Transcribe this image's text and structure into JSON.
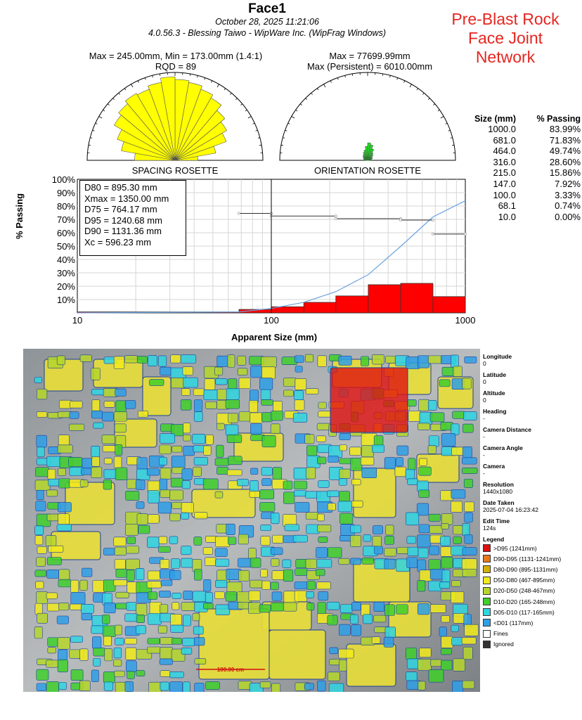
{
  "header": {
    "title": "Face1",
    "date": "October 28, 2025 11:21:06",
    "software": "4.0.56.3  -  Blessing Taiwo - WipWare Inc. (WipFrag Windows)"
  },
  "annotation": [
    "Pre-Blast Rock",
    "Face Joint",
    "Network"
  ],
  "spacing": {
    "stats_line1": "Max = 245.00mm, Min = 173.00mm (1.4:1)",
    "stats_line2": "RQD = 89",
    "label": "SPACING ROSETTE",
    "color": "#ffff00"
  },
  "orientation": {
    "stats_line1": "Max = 77699.99mm",
    "stats_line2": "Max (Persistent) = 6010.00mm",
    "label": "ORIENTATION ROSETTE",
    "color": "#22dd22"
  },
  "passing_table": {
    "headers": [
      "Size (mm)",
      "% Passing"
    ],
    "rows": [
      [
        "1000.0",
        "83.99%"
      ],
      [
        "681.0",
        "71.83%"
      ],
      [
        "464.0",
        "49.74%"
      ],
      [
        "316.0",
        "28.60%"
      ],
      [
        "215.0",
        "15.86%"
      ],
      [
        "147.0",
        "7.92%"
      ],
      [
        "100.0",
        "3.33%"
      ],
      [
        "68.1",
        "0.74%"
      ],
      [
        "10.0",
        "0.00%"
      ]
    ]
  },
  "stats_box": [
    "D80 = 895.30 mm",
    "Xmax = 1350.00 mm",
    "D75 = 764.17 mm",
    "D95 = 1240.68 mm",
    "D90 = 1131.36 mm",
    "Xc = 596.23 mm"
  ],
  "chart_data": {
    "type": "bar",
    "xlabel": "Apparent Size (mm)",
    "ylabel": "% Passing",
    "x_scale": "log",
    "xlim": [
      10,
      1000
    ],
    "ylim": [
      0,
      100
    ],
    "x_ticks": [
      "10",
      "100",
      "1000"
    ],
    "y_ticks": [
      "10%",
      "20%",
      "30%",
      "40%",
      "50%",
      "60%",
      "70%",
      "80%",
      "90%",
      "100%"
    ],
    "grid": true,
    "bars": [
      {
        "x0": 10,
        "x1": 68.1,
        "value": 0.74
      },
      {
        "x0": 68.1,
        "x1": 100,
        "value": 2.6
      },
      {
        "x0": 100,
        "x1": 147,
        "value": 4.6
      },
      {
        "x0": 147,
        "x1": 215,
        "value": 7.9
      },
      {
        "x0": 215,
        "x1": 316,
        "value": 12.7
      },
      {
        "x0": 316,
        "x1": 464,
        "value": 21.1
      },
      {
        "x0": 464,
        "x1": 681,
        "value": 22.1
      },
      {
        "x0": 681,
        "x1": 1000,
        "value": 12.2
      }
    ],
    "bar_color": "#ff0000",
    "cumulative": {
      "x": [
        10,
        68.1,
        100,
        147,
        215,
        316,
        464,
        681,
        1000
      ],
      "y": [
        0,
        0.74,
        3.33,
        7.92,
        15.86,
        28.6,
        49.74,
        71.83,
        83.99
      ],
      "color": "#6aa3e0"
    },
    "step_segments": [
      {
        "x0": 68.1,
        "x1": 100,
        "y": 74.5
      },
      {
        "x0": 100,
        "x1": 215,
        "y": 72.5
      },
      {
        "x0": 215,
        "x1": 464,
        "y": 70.5
      },
      {
        "x0": 464,
        "x1": 681,
        "y": 69.5
      },
      {
        "x0": 681,
        "x1": 1000,
        "y": 59
      }
    ],
    "vline_x": 100
  },
  "sidebar": {
    "meta": [
      {
        "label": "Longitude",
        "value": "0"
      },
      {
        "label": "Latitude",
        "value": "0"
      },
      {
        "label": "Altitude",
        "value": "0"
      },
      {
        "label": "Heading",
        "value": "-"
      },
      {
        "label": "Camera Distance",
        "value": "-"
      },
      {
        "label": "Camera Angle",
        "value": "-"
      },
      {
        "label": "Camera",
        "value": "-"
      },
      {
        "label": "Resolution",
        "value": "1440x1080"
      },
      {
        "label": "Date Taken",
        "value": "2025-07-04 16:23:42"
      },
      {
        "label": "Edit Time",
        "value": "124s"
      }
    ],
    "legend_title": "Legend",
    "legend": [
      {
        "label": ">D95 (1241mm)",
        "color": "#e01010"
      },
      {
        "label": "D90-D95 (1131-1241mm)",
        "color": "#e87a1a"
      },
      {
        "label": "D80-D90 (895-1131mm)",
        "color": "#d4b000"
      },
      {
        "label": "D50-D80 (467-895mm)",
        "color": "#f2ea1a"
      },
      {
        "label": "D20-D50 (248-467mm)",
        "color": "#b6d62a"
      },
      {
        "label": "D10-D20 (165-248mm)",
        "color": "#3fcf2a"
      },
      {
        "label": "D05-D10 (117-165mm)",
        "color": "#2fd5e0"
      },
      {
        "label": "<D01 (117mm)",
        "color": "#2e9fe6"
      },
      {
        "label": "Fines",
        "color": "#ffffff"
      },
      {
        "label": "Ignored",
        "color": "#333333"
      }
    ]
  },
  "photo": {
    "scale_label": "100.00 cm"
  }
}
